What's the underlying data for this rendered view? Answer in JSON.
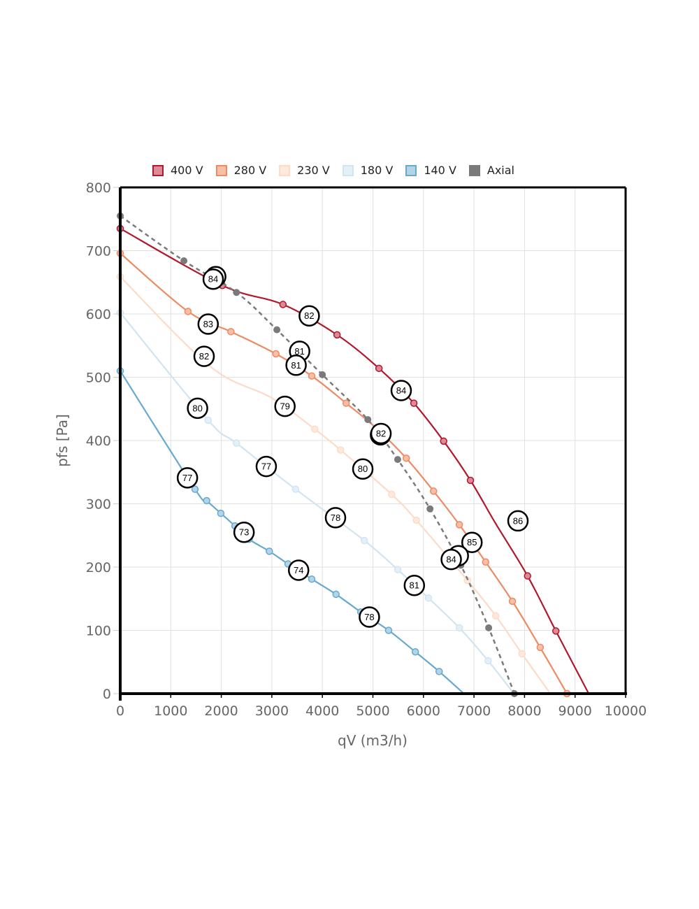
{
  "chart_data": {
    "type": "line",
    "title": "",
    "xlabel": "qV (m3/h)",
    "ylabel": "pfs [Pa]",
    "xlim": [
      0,
      10000
    ],
    "ylim": [
      0,
      800
    ],
    "x_ticks": [
      "0",
      "1000",
      "2000",
      "3000",
      "4000",
      "5000",
      "6000",
      "7000",
      "8000",
      "9000",
      "10000"
    ],
    "y_ticks": [
      "0",
      "100",
      "200",
      "300",
      "400",
      "500",
      "600",
      "700",
      "800"
    ],
    "x_tick_values": [
      0,
      1000,
      2000,
      3000,
      4000,
      5000,
      6000,
      7000,
      8000,
      9000,
      10000
    ],
    "y_tick_values": [
      0,
      100,
      200,
      300,
      400,
      500,
      600,
      700,
      800
    ],
    "grid": true,
    "legend_position": "top",
    "series": [
      {
        "name": "400 V",
        "color": "#b2182b",
        "fill": "#dc8a95",
        "dashed": false,
        "markers": true,
        "x": [
          0,
          2020,
          3220,
          4290,
          5120,
          5810,
          6400,
          6930,
          7420,
          8060,
          8620,
          9270
        ],
        "y": [
          735,
          645,
          615,
          567,
          514,
          459,
          399,
          337,
          270,
          186,
          99,
          0
        ],
        "marker_mask": [
          1,
          1,
          1,
          1,
          1,
          1,
          1,
          1,
          0,
          1,
          1,
          0
        ]
      },
      {
        "name": "280 V",
        "color": "#ef8a62",
        "fill": "#f7bfa7",
        "dashed": false,
        "markers": true,
        "x": [
          0,
          1340,
          2190,
          3080,
          3790,
          4470,
          5060,
          5660,
          6200,
          6710,
          7230,
          7760,
          8310,
          8840
        ],
        "y": [
          696,
          604,
          572,
          537,
          502,
          459,
          420,
          372,
          320,
          267,
          208,
          146,
          73,
          0
        ],
        "marker_mask": [
          1,
          1,
          1,
          1,
          1,
          1,
          0,
          1,
          1,
          1,
          1,
          1,
          1,
          1
        ]
      },
      {
        "name": "230 V",
        "color": "#fddbc7",
        "fill": "#fee9dd",
        "dashed": false,
        "markers": true,
        "x": [
          0,
          1780,
          2980,
          3850,
          4360,
          5370,
          5860,
          6870,
          7430,
          7950,
          8510
        ],
        "y": [
          659,
          517,
          468,
          418,
          385,
          315,
          274,
          179,
          123,
          63,
          0
        ],
        "marker_mask": [
          1,
          0,
          0,
          1,
          1,
          1,
          1,
          1,
          1,
          1,
          0
        ]
      },
      {
        "name": "180 V",
        "color": "#d1e5f0",
        "fill": "#e5f0f6",
        "dashed": false,
        "markers": true,
        "x": [
          0,
          1740,
          2300,
          3470,
          4830,
          5490,
          6100,
          6710,
          7280,
          7790
        ],
        "y": [
          602,
          432,
          396,
          323,
          242,
          196,
          151,
          104,
          52,
          0
        ],
        "marker_mask": [
          1,
          1,
          1,
          1,
          1,
          1,
          1,
          1,
          1,
          0
        ]
      },
      {
        "name": "140 V",
        "color": "#67a9cf",
        "fill": "#b3d4e7",
        "dashed": false,
        "markers": true,
        "x": [
          0,
          1480,
          1710,
          1990,
          2270,
          2550,
          2950,
          3320,
          3790,
          4270,
          4760,
          5310,
          5840,
          6310,
          6800
        ],
        "y": [
          510,
          323,
          305,
          285,
          265,
          244,
          225,
          205,
          181,
          157,
          129,
          100,
          66,
          35,
          0
        ],
        "marker_mask": [
          1,
          1,
          1,
          1,
          1,
          1,
          1,
          1,
          1,
          1,
          1,
          1,
          1,
          1,
          0
        ]
      },
      {
        "name": "Axial",
        "color": "#7a7a7a",
        "fill": "#7a7a7a",
        "dashed": true,
        "markers": true,
        "x": [
          0,
          1260,
          2300,
          3100,
          4000,
          4900,
          5490,
          6130,
          6740,
          7290,
          7800
        ],
        "y": [
          755,
          684,
          634,
          575,
          504,
          433,
          370,
          292,
          203,
          104,
          0
        ],
        "marker_mask": [
          1,
          1,
          1,
          1,
          1,
          1,
          1,
          1,
          1,
          1,
          1
        ]
      }
    ],
    "annotations": [
      {
        "label": "84",
        "x": 1890,
        "y": 659
      },
      {
        "label": "84",
        "x": 1840,
        "y": 655
      },
      {
        "label": "82",
        "x": 3740,
        "y": 597
      },
      {
        "label": "83",
        "x": 1740,
        "y": 584
      },
      {
        "label": "81",
        "x": 3550,
        "y": 541
      },
      {
        "label": "81",
        "x": 3480,
        "y": 519
      },
      {
        "label": "82",
        "x": 1660,
        "y": 533
      },
      {
        "label": "84",
        "x": 5560,
        "y": 479
      },
      {
        "label": "79",
        "x": 3260,
        "y": 454
      },
      {
        "label": "82",
        "x": 5150,
        "y": 409
      },
      {
        "label": "82",
        "x": 5160,
        "y": 411
      },
      {
        "label": "80",
        "x": 1530,
        "y": 451
      },
      {
        "label": "77",
        "x": 2890,
        "y": 359
      },
      {
        "label": "80",
        "x": 4800,
        "y": 355
      },
      {
        "label": "77",
        "x": 1330,
        "y": 341
      },
      {
        "label": "78",
        "x": 4260,
        "y": 278
      },
      {
        "label": "86",
        "x": 7870,
        "y": 273
      },
      {
        "label": "85",
        "x": 6960,
        "y": 239
      },
      {
        "label": "",
        "x": 6690,
        "y": 218
      },
      {
        "label": "84",
        "x": 6550,
        "y": 212
      },
      {
        "label": "73",
        "x": 2450,
        "y": 255
      },
      {
        "label": "74",
        "x": 3530,
        "y": 195
      },
      {
        "label": "81",
        "x": 5820,
        "y": 171
      },
      {
        "label": "78",
        "x": 4930,
        "y": 121
      }
    ]
  },
  "legend": {
    "items": [
      {
        "label": "400 V"
      },
      {
        "label": "280 V"
      },
      {
        "label": "230 V"
      },
      {
        "label": "180 V"
      },
      {
        "label": "140 V"
      },
      {
        "label": "Axial"
      }
    ]
  }
}
